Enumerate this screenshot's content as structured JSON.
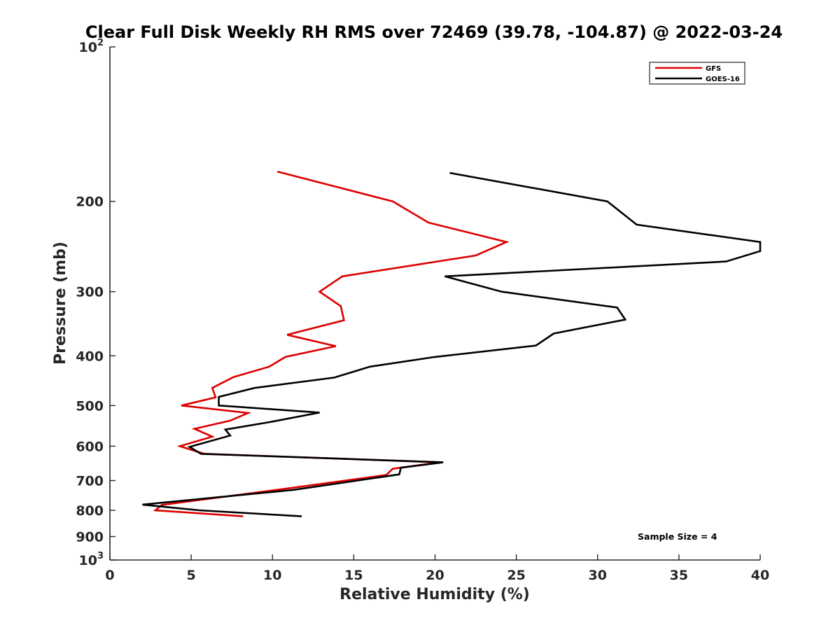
{
  "chart_data": {
    "type": "line",
    "title": "Clear Full Disk Weekly RH RMS over 72469 (39.78, -104.87) @ 2022-03-24",
    "xlabel": "Relative Humidity (%)",
    "ylabel": "Pressure (mb)",
    "xlim": [
      0,
      40
    ],
    "ylim": [
      100,
      1000
    ],
    "yscale": "log",
    "y_reversed": true,
    "x_ticks": [
      {
        "value": 0,
        "label": "0"
      },
      {
        "value": 5,
        "label": "5"
      },
      {
        "value": 10,
        "label": "10"
      },
      {
        "value": 15,
        "label": "15"
      },
      {
        "value": 20,
        "label": "20"
      },
      {
        "value": 25,
        "label": "25"
      },
      {
        "value": 30,
        "label": "30"
      },
      {
        "value": 35,
        "label": "35"
      },
      {
        "value": 40,
        "label": "40"
      }
    ],
    "y_ticks": [
      {
        "value": 100,
        "label": "10",
        "sup": "2"
      },
      {
        "value": 200,
        "label": "200"
      },
      {
        "value": 300,
        "label": "300"
      },
      {
        "value": 400,
        "label": "400"
      },
      {
        "value": 500,
        "label": "500"
      },
      {
        "value": 600,
        "label": "600"
      },
      {
        "value": 700,
        "label": "700"
      },
      {
        "value": 800,
        "label": "800"
      },
      {
        "value": 900,
        "label": "900"
      },
      {
        "value": 1000,
        "label": "10",
        "sup": "3"
      }
    ],
    "grid": false,
    "legend_position": "top-right",
    "series": [
      {
        "name": "GFS",
        "color": "#dd0000",
        "points": [
          [
            10.3,
            175
          ],
          [
            17.4,
            200
          ],
          [
            19.6,
            220
          ],
          [
            24.4,
            240
          ],
          [
            22.5,
            255
          ],
          [
            14.3,
            280
          ],
          [
            12.9,
            300
          ],
          [
            14.2,
            320
          ],
          [
            14.4,
            341
          ],
          [
            10.9,
            364
          ],
          [
            13.9,
            383
          ],
          [
            10.8,
            402
          ],
          [
            9.8,
            420
          ],
          [
            7.6,
            440
          ],
          [
            6.3,
            462
          ],
          [
            6.5,
            482
          ],
          [
            4.4,
            500
          ],
          [
            8.5,
            517
          ],
          [
            7.4,
            535
          ],
          [
            5.2,
            555
          ],
          [
            6.3,
            575
          ],
          [
            4.3,
            600
          ],
          [
            5.8,
            621
          ],
          [
            20.3,
            645
          ],
          [
            17.4,
            664
          ],
          [
            17.0,
            683
          ],
          [
            11.0,
            725
          ],
          [
            3.2,
            781
          ],
          [
            2.8,
            800
          ],
          [
            8.2,
            822
          ]
        ]
      },
      {
        "name": "GOES-16",
        "color": "#000000",
        "points": [
          [
            20.9,
            176
          ],
          [
            30.6,
            200
          ],
          [
            32.4,
            222
          ],
          [
            40.0,
            240
          ],
          [
            40.0,
            250
          ],
          [
            37.9,
            262
          ],
          [
            20.6,
            280
          ],
          [
            24.1,
            300
          ],
          [
            31.2,
            322
          ],
          [
            31.7,
            340
          ],
          [
            27.3,
            362
          ],
          [
            26.2,
            382
          ],
          [
            20.0,
            402
          ],
          [
            16.0,
            420
          ],
          [
            13.8,
            441
          ],
          [
            8.9,
            462
          ],
          [
            6.7,
            481
          ],
          [
            6.7,
            500
          ],
          [
            12.9,
            516
          ],
          [
            9.9,
            538
          ],
          [
            7.1,
            557
          ],
          [
            7.4,
            572
          ],
          [
            4.9,
            602
          ],
          [
            5.6,
            621
          ],
          [
            20.5,
            645
          ],
          [
            17.9,
            661
          ],
          [
            17.8,
            681
          ],
          [
            11.3,
            730
          ],
          [
            2.0,
            780
          ],
          [
            5.5,
            800
          ],
          [
            11.8,
            822
          ]
        ]
      }
    ],
    "annotations": [
      {
        "text": "Sample Size = 4"
      }
    ]
  }
}
